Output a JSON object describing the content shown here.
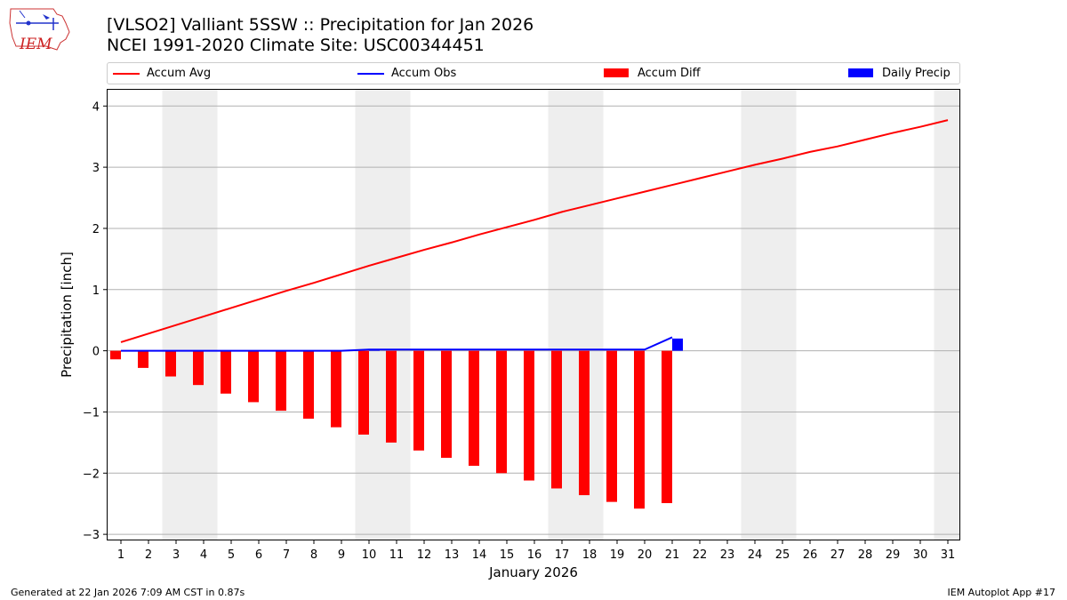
{
  "header": {
    "title_line1": "[VLSO2] Valliant 5SSW :: Precipitation for Jan 2026",
    "title_line2": "NCEI 1991-2020 Climate Site: USC00344451",
    "logo_text": "IEM"
  },
  "footer": {
    "left": "Generated at 22 Jan 2026 7:09 AM CST in 0.87s",
    "right": "IEM Autoplot App #17"
  },
  "colors": {
    "accum_avg": "#ff0000",
    "accum_obs": "#0000ff",
    "accum_diff": "#ff0000",
    "daily_precip": "#0000ff",
    "weekend_shade": "#eeeeee",
    "grid": "#b0b0b0"
  },
  "chart_data": {
    "type": "bar",
    "xlabel": "January 2026",
    "ylabel": "Precipitation [inch]",
    "x": [
      1,
      2,
      3,
      4,
      5,
      6,
      7,
      8,
      9,
      10,
      11,
      12,
      13,
      14,
      15,
      16,
      17,
      18,
      19,
      20,
      21,
      22,
      23,
      24,
      25,
      26,
      27,
      28,
      29,
      30,
      31
    ],
    "x_tick_labels": [
      "1",
      "2",
      "3",
      "4",
      "5",
      "6",
      "7",
      "8",
      "9",
      "10",
      "11",
      "12",
      "13",
      "14",
      "15",
      "16",
      "17",
      "18",
      "19",
      "20",
      "21",
      "22",
      "23",
      "24",
      "25",
      "26",
      "27",
      "28",
      "29",
      "30",
      "31"
    ],
    "ylim": [
      -3.1,
      4.28
    ],
    "y_ticks": [
      -3,
      -2,
      -1,
      0,
      1,
      2,
      3,
      4
    ],
    "y_tick_labels": [
      "−3",
      "−2",
      "−1",
      "0",
      "1",
      "2",
      "3",
      "4"
    ],
    "grid": "y",
    "legend_position": "top",
    "weekend_shaded_days": [
      3,
      4,
      10,
      11,
      17,
      18,
      24,
      25,
      31
    ],
    "series": [
      {
        "name": "Accum Avg",
        "kind": "line",
        "x": [
          1,
          2,
          3,
          4,
          5,
          6,
          7,
          8,
          9,
          10,
          11,
          12,
          13,
          14,
          15,
          16,
          17,
          18,
          19,
          20,
          21,
          22,
          23,
          24,
          25,
          26,
          27,
          28,
          29,
          30,
          31
        ],
        "values": [
          0.14,
          0.28,
          0.42,
          0.56,
          0.7,
          0.84,
          0.98,
          1.11,
          1.25,
          1.39,
          1.52,
          1.65,
          1.77,
          1.9,
          2.02,
          2.14,
          2.27,
          2.38,
          2.49,
          2.6,
          2.71,
          2.82,
          2.93,
          3.04,
          3.14,
          3.25,
          3.34,
          3.45,
          3.56,
          3.66,
          3.77
        ]
      },
      {
        "name": "Accum Obs",
        "kind": "line",
        "x": [
          1,
          2,
          3,
          4,
          5,
          6,
          7,
          8,
          9,
          10,
          11,
          12,
          13,
          14,
          15,
          16,
          17,
          18,
          19,
          20,
          21
        ],
        "values": [
          0.0,
          0.0,
          0.0,
          0.0,
          0.0,
          0.0,
          0.0,
          0.0,
          0.0,
          0.02,
          0.02,
          0.02,
          0.02,
          0.02,
          0.02,
          0.02,
          0.02,
          0.02,
          0.02,
          0.02,
          0.22
        ]
      },
      {
        "name": "Accum Diff",
        "kind": "bar",
        "x": [
          1,
          2,
          3,
          4,
          5,
          6,
          7,
          8,
          9,
          10,
          11,
          12,
          13,
          14,
          15,
          16,
          17,
          18,
          19,
          20,
          21
        ],
        "values": [
          -0.14,
          -0.28,
          -0.42,
          -0.56,
          -0.7,
          -0.84,
          -0.98,
          -1.11,
          -1.25,
          -1.37,
          -1.5,
          -1.63,
          -1.75,
          -1.88,
          -2.0,
          -2.12,
          -2.25,
          -2.36,
          -2.47,
          -2.58,
          -2.49
        ]
      },
      {
        "name": "Daily Precip",
        "kind": "bar",
        "x": [
          10,
          21
        ],
        "values": [
          0.02,
          0.2
        ]
      }
    ]
  }
}
